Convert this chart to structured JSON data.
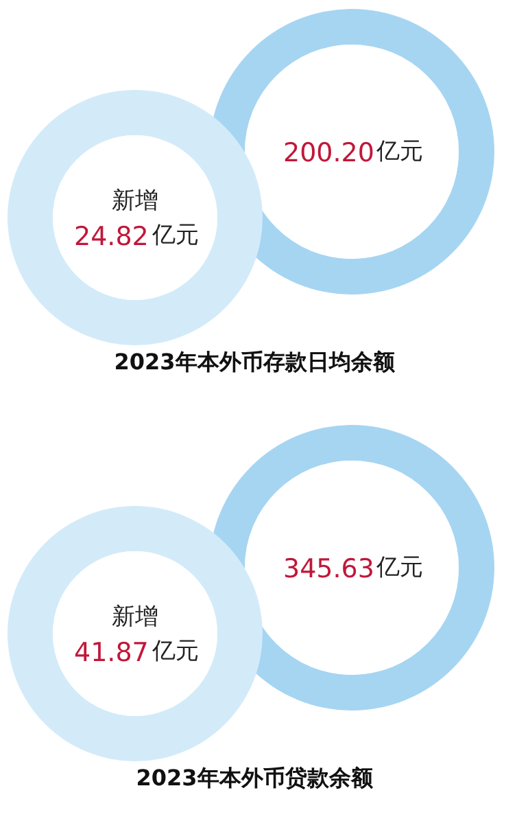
{
  "chart_data": [
    {
      "type": "other",
      "title": "2023年本外币存款日均余额",
      "categories": [
        null,
        "新增"
      ],
      "values": [
        200.2,
        24.82
      ],
      "value_labels": [
        "200.20亿元",
        "24.82亿元"
      ],
      "colors": [
        "#a6d5f2",
        "#d3ebf9"
      ]
    },
    {
      "type": "other",
      "title": "2023年本外币贷款余额",
      "categories": [
        null,
        "新增"
      ],
      "values": [
        345.63,
        41.87
      ],
      "value_labels": [
        "345.63亿元",
        "41.87亿元"
      ],
      "colors": [
        "#a6d5f2",
        "#d3ebf9"
      ]
    }
  ]
}
